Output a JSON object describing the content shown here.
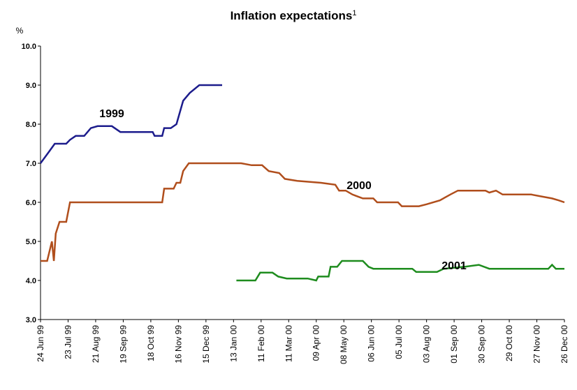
{
  "chart_data": {
    "type": "line",
    "title": "Inflation expectations",
    "title_note": "1",
    "ylabel": "%",
    "xlim": [
      "1999-06-24",
      "2000-12-26"
    ],
    "xticks": [
      {
        "value": "1999-06-24",
        "label": "24 Jun 99"
      },
      {
        "value": "1999-07-23",
        "label": "23 Jul 99"
      },
      {
        "value": "1999-08-21",
        "label": "21 Aug 99"
      },
      {
        "value": "1999-09-19",
        "label": "19 Sep 99"
      },
      {
        "value": "1999-10-18",
        "label": "18 Oct 99"
      },
      {
        "value": "1999-11-16",
        "label": "16 Nov 99"
      },
      {
        "value": "1999-12-15",
        "label": "15 Dec 99"
      },
      {
        "value": "2000-01-13",
        "label": "13 Jan 00"
      },
      {
        "value": "2000-02-11",
        "label": "11 Feb 00"
      },
      {
        "value": "2000-03-11",
        "label": "11 Mar 00"
      },
      {
        "value": "2000-04-09",
        "label": "09 Apr 00"
      },
      {
        "value": "2000-05-08",
        "label": "08 May 00"
      },
      {
        "value": "2000-06-06",
        "label": "06 Jun 00"
      },
      {
        "value": "2000-07-05",
        "label": "05 Jul 00"
      },
      {
        "value": "2000-08-03",
        "label": "03 Aug 00"
      },
      {
        "value": "2000-09-01",
        "label": "01 Sep 00"
      },
      {
        "value": "2000-09-30",
        "label": "30 Sep 00"
      },
      {
        "value": "2000-10-29",
        "label": "29 Oct 00"
      },
      {
        "value": "2000-11-27",
        "label": "27 Nov 00"
      },
      {
        "value": "2000-12-26",
        "label": "26 Dec 00"
      }
    ],
    "ylim": [
      3,
      10
    ],
    "yticks": [
      {
        "value": 3,
        "label": "3.0"
      },
      {
        "value": 4,
        "label": "4.0"
      },
      {
        "value": 5,
        "label": "5.0"
      },
      {
        "value": 6,
        "label": "6.0"
      },
      {
        "value": 7,
        "label": "7.0"
      },
      {
        "value": 8,
        "label": "8.0"
      },
      {
        "value": 9,
        "label": "9.0"
      },
      {
        "value": 10,
        "label": "10.0"
      }
    ],
    "grid": false,
    "series": [
      {
        "name": "1999",
        "color": "#1c1c8c",
        "x": [
          "1999-06-24",
          "1999-07-03",
          "1999-07-09",
          "1999-07-21",
          "1999-07-25",
          "1999-07-31",
          "1999-08-09",
          "1999-08-16",
          "1999-08-23",
          "1999-09-07",
          "1999-09-16",
          "1999-10-06",
          "1999-10-20",
          "1999-10-22",
          "1999-10-30",
          "1999-11-01",
          "1999-11-08",
          "1999-11-14",
          "1999-11-21",
          "1999-11-28",
          "1999-12-08",
          "2000-01-01"
        ],
        "values": [
          7.0,
          7.3,
          7.5,
          7.5,
          7.6,
          7.7,
          7.7,
          7.9,
          7.95,
          7.95,
          7.8,
          7.8,
          7.8,
          7.7,
          7.7,
          7.9,
          7.9,
          8.0,
          8.6,
          8.8,
          9.0,
          9.0
        ]
      },
      {
        "name": "2000",
        "color": "#b04e1c",
        "x": [
          "1999-06-24",
          "1999-07-01",
          "1999-07-04",
          "1999-07-06",
          "1999-07-08",
          "1999-07-10",
          "1999-07-14",
          "1999-07-21",
          "1999-07-25",
          "1999-10-06",
          "1999-10-30",
          "1999-11-01",
          "1999-11-11",
          "1999-11-14",
          "1999-11-18",
          "1999-11-21",
          "1999-11-27",
          "2000-01-21",
          "2000-02-01",
          "2000-02-12",
          "2000-02-19",
          "2000-03-01",
          "2000-03-07",
          "2000-03-20",
          "2000-04-14",
          "2000-04-29",
          "2000-05-03",
          "2000-05-10",
          "2000-05-17",
          "2000-05-28",
          "2000-06-08",
          "2000-06-12",
          "2000-07-04",
          "2000-07-08",
          "2000-07-26",
          "2000-08-03",
          "2000-08-17",
          "2000-08-28",
          "2000-09-05",
          "2000-10-04",
          "2000-10-08",
          "2000-10-15",
          "2000-10-22",
          "2000-11-21",
          "2000-12-02",
          "2000-12-13",
          "2000-12-20",
          "2000-12-26"
        ],
        "values": [
          4.5,
          4.5,
          4.8,
          5.0,
          4.5,
          5.2,
          5.5,
          5.5,
          6.0,
          6.0,
          6.0,
          6.35,
          6.35,
          6.5,
          6.5,
          6.8,
          7.0,
          7.0,
          6.95,
          6.95,
          6.8,
          6.75,
          6.6,
          6.55,
          6.5,
          6.45,
          6.3,
          6.3,
          6.2,
          6.1,
          6.1,
          6.0,
          6.0,
          5.9,
          5.9,
          5.95,
          6.05,
          6.2,
          6.3,
          6.3,
          6.25,
          6.3,
          6.2,
          6.2,
          6.15,
          6.1,
          6.05,
          6.0
        ]
      },
      {
        "name": "2001",
        "color": "#1e8c1e",
        "x": [
          "2000-01-16",
          "2000-02-05",
          "2000-02-10",
          "2000-02-23",
          "2000-02-29",
          "2000-03-09",
          "2000-03-31",
          "2000-04-09",
          "2000-04-11",
          "2000-04-22",
          "2000-04-24",
          "2000-05-01",
          "2000-05-06",
          "2000-05-28",
          "2000-06-03",
          "2000-06-08",
          "2000-07-19",
          "2000-07-23",
          "2000-08-14",
          "2000-08-21",
          "2000-09-12",
          "2000-09-27",
          "2000-10-08",
          "2000-12-09",
          "2000-12-13",
          "2000-12-17",
          "2000-12-26"
        ],
        "values": [
          4.0,
          4.0,
          4.2,
          4.2,
          4.1,
          4.05,
          4.05,
          4.0,
          4.1,
          4.1,
          4.35,
          4.35,
          4.5,
          4.5,
          4.35,
          4.3,
          4.3,
          4.22,
          4.22,
          4.3,
          4.35,
          4.4,
          4.3,
          4.3,
          4.4,
          4.3,
          4.3
        ]
      }
    ]
  }
}
